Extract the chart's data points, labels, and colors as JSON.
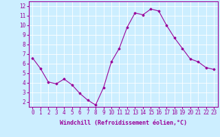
{
  "x": [
    0,
    1,
    2,
    3,
    4,
    5,
    6,
    7,
    8,
    9,
    10,
    11,
    12,
    13,
    14,
    15,
    16,
    17,
    18,
    19,
    20,
    21,
    22,
    23
  ],
  "y": [
    6.6,
    5.5,
    4.1,
    3.9,
    4.4,
    3.8,
    2.9,
    2.2,
    1.7,
    3.5,
    6.2,
    7.6,
    9.8,
    11.3,
    11.1,
    11.7,
    11.5,
    10.0,
    8.7,
    7.6,
    6.5,
    6.2,
    5.6,
    5.4
  ],
  "line_color": "#990099",
  "marker": "D",
  "marker_size": 1.5,
  "line_width": 0.8,
  "bg_color": "#cceeff",
  "grid_color": "#ffffff",
  "xlabel": "Windchill (Refroidissement éolien,°C)",
  "xlabel_fontsize": 6.0,
  "ylabel_ticks": [
    2,
    3,
    4,
    5,
    6,
    7,
    8,
    9,
    10,
    11,
    12
  ],
  "xlim": [
    -0.5,
    23.5
  ],
  "ylim": [
    1.5,
    12.5
  ],
  "xtick_labels": [
    "0",
    "1",
    "2",
    "3",
    "4",
    "5",
    "6",
    "7",
    "8",
    "9",
    "10",
    "11",
    "12",
    "13",
    "14",
    "15",
    "16",
    "17",
    "18",
    "19",
    "20",
    "21",
    "22",
    "23"
  ],
  "tick_fontsize": 5.5,
  "xlabel_color": "#990099",
  "tick_color": "#990099",
  "spine_color": "#990099"
}
